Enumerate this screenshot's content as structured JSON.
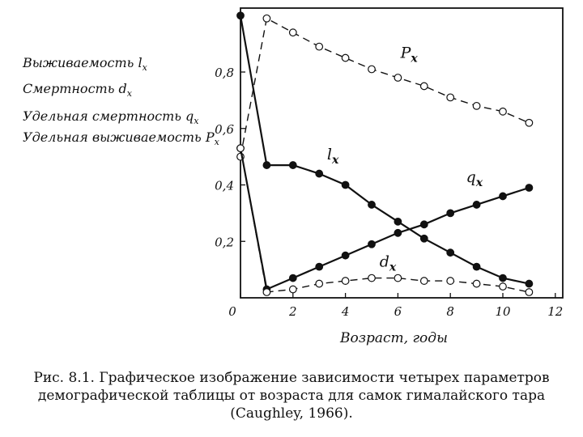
{
  "chart_data": {
    "type": "line",
    "title": "",
    "xlabel": "Возраст, годы",
    "ylabel": "",
    "legend_text": [
      {
        "text": "Выживаемость ",
        "var": "l",
        "sub": "x"
      },
      {
        "text": "Смертность ",
        "var": "d",
        "sub": "x"
      },
      {
        "text": "Удельная смертность ",
        "var": "q",
        "sub": "x"
      },
      {
        "text": "Удельная выживаемость ",
        "var": "P",
        "sub": "x"
      }
    ],
    "xlim": [
      0,
      12
    ],
    "ylim": [
      0,
      1.0
    ],
    "x_ticks": [
      "0",
      "2",
      "4",
      "6",
      "8",
      "10",
      "12"
    ],
    "y_ticks": [
      "0,2",
      "0,4",
      "0,6",
      "0,8"
    ],
    "grid": false,
    "series": [
      {
        "name": "P",
        "sub": "x",
        "marker": "open",
        "dash": true,
        "x": [
          0,
          1,
          2,
          3,
          4,
          5,
          6,
          7,
          8,
          9,
          10,
          11
        ],
        "y": [
          0.5,
          0.99,
          0.94,
          0.89,
          0.85,
          0.81,
          0.78,
          0.75,
          0.71,
          0.68,
          0.66,
          0.62
        ]
      },
      {
        "name": "l",
        "sub": "x",
        "marker": "filled",
        "dash": false,
        "x": [
          0,
          1,
          2,
          3,
          4,
          5,
          6,
          7,
          8,
          9,
          10,
          11
        ],
        "y": [
          1.0,
          0.47,
          0.47,
          0.44,
          0.4,
          0.33,
          0.27,
          0.21,
          0.16,
          0.11,
          0.07,
          0.05
        ]
      },
      {
        "name": "q",
        "sub": "x",
        "marker": "filled",
        "dash": false,
        "x": [
          0,
          1,
          2,
          3,
          4,
          5,
          6,
          7,
          8,
          9,
          10,
          11
        ],
        "y": [
          0.53,
          0.03,
          0.07,
          0.11,
          0.15,
          0.19,
          0.23,
          0.26,
          0.3,
          0.33,
          0.36,
          0.39
        ]
      },
      {
        "name": "d",
        "sub": "x",
        "marker": "open",
        "dash": true,
        "x": [
          0,
          1,
          2,
          3,
          4,
          5,
          6,
          7,
          8,
          9,
          10,
          11
        ],
        "y": [
          0.53,
          0.02,
          0.03,
          0.05,
          0.06,
          0.07,
          0.07,
          0.06,
          0.06,
          0.05,
          0.04,
          0.02
        ]
      }
    ],
    "curve_labels": [
      {
        "series": "P",
        "at_x": 6.1,
        "at_y": 0.85
      },
      {
        "series": "l",
        "at_x": 3.3,
        "at_y": 0.49
      },
      {
        "series": "q",
        "at_x": 8.6,
        "at_y": 0.41
      },
      {
        "series": "d",
        "at_x": 5.3,
        "at_y": 0.11
      }
    ]
  },
  "caption": {
    "line1": "Рис. 8.1. Графическое изображение зависимости четырех параметров",
    "line2": "демографической таблицы от возраста для самок гималайского тара",
    "line3": "(Caughley, 1966)."
  }
}
